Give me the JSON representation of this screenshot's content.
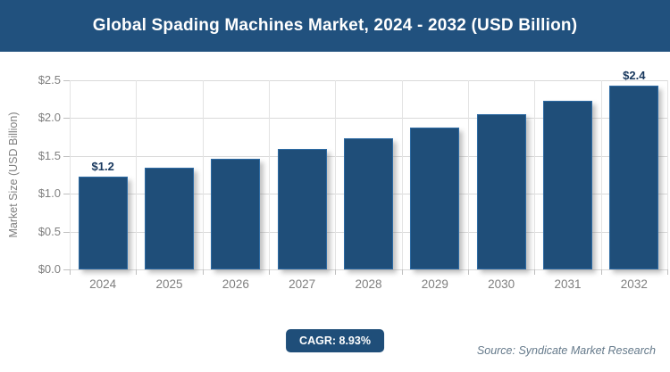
{
  "header": {
    "title": "Global Spading Machines Market, 2024 - 2032 (USD Billion)"
  },
  "chart_data": {
    "type": "bar",
    "title": "Global Spading Machines Market, 2024 - 2032 (USD Billion)",
    "categories": [
      "2024",
      "2025",
      "2026",
      "2027",
      "2028",
      "2029",
      "2030",
      "2031",
      "2032"
    ],
    "values": [
      1.23,
      1.34,
      1.46,
      1.59,
      1.73,
      1.88,
      2.05,
      2.23,
      2.43
    ],
    "data_labels": [
      {
        "index": 0,
        "label": "$1.2"
      },
      {
        "index": 8,
        "label": "$2.4"
      }
    ],
    "xlabel": "",
    "ylabel": "Market Size (USD Billion)",
    "ylim": [
      0,
      2.5
    ],
    "yticks": [
      0,
      0.5,
      1.0,
      1.5,
      2.0,
      2.5
    ],
    "ytick_labels": [
      "$0.0",
      "$0.5",
      "$1.0",
      "$1.5",
      "$2.0",
      "$2.5"
    ],
    "grid": true,
    "legend_position": "none",
    "bar_color": "#1F4E79"
  },
  "footer": {
    "cagr_label": "CAGR: 8.93%",
    "source": "Source: Syndicate Market Research"
  },
  "colors": {
    "banner_bg": "#21517E",
    "bar": "#1F4E79",
    "bar_border": "#2D6AA3",
    "grid_h": "#D9D9D9",
    "grid_v": "#E3E3E3",
    "tick": "#BFBFBF",
    "axis_text": "#7F7F7F",
    "value_label_text": "#17375D",
    "badge_bg": "#1F4E79",
    "badge_text": "#FFFFFF",
    "source_text": "#64798A"
  }
}
